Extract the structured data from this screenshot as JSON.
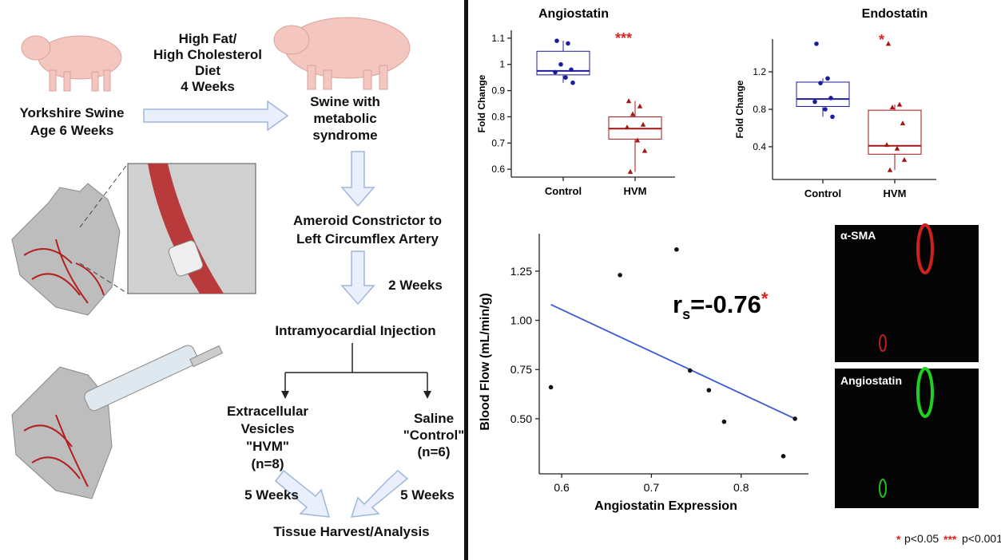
{
  "diagram": {
    "diet": [
      "High Fat/",
      "High Cholesterol",
      "Diet",
      "4 Weeks"
    ],
    "start": [
      "Yorkshire Swine",
      "Age 6 Weeks"
    ],
    "model": [
      "Swine with",
      "metabolic",
      "syndrome"
    ],
    "ameroid": [
      "Ameroid Constrictor to",
      "Left Circumflex Artery"
    ],
    "wait": "2 Weeks",
    "injection": "Intramyocardial Injection",
    "hvm": [
      "Extracellular",
      "Vesicles",
      "\"HVM\"",
      "(n=8)"
    ],
    "control": [
      "Saline",
      "\"Control\"",
      "(n=6)"
    ],
    "follow_left": "5 Weeks",
    "follow_right": "5 Weeks",
    "harvest": "Tissue Harvest/Analysis"
  },
  "chart_data": [
    {
      "type": "box",
      "title": "Angiostatin",
      "y_label": "Fold Change",
      "categories": [
        "Control",
        "HVM"
      ],
      "colors": [
        "#1c1c9c",
        "#a31515"
      ],
      "annotation": "***",
      "annotation_color": "#e02020",
      "ylim": [
        0.57,
        1.13
      ],
      "yticks": [
        0.6,
        0.7,
        0.8,
        0.9,
        1.0,
        1.1
      ],
      "boxes": [
        {
          "min": 0.93,
          "q1": 0.96,
          "median": 0.975,
          "q3": 1.05,
          "max": 1.09,
          "points": [
            1.09,
            1.08,
            1.0,
            0.98,
            0.97,
            0.95,
            0.93
          ]
        },
        {
          "min": 0.59,
          "q1": 0.715,
          "median": 0.755,
          "q3": 0.8,
          "max": 0.86,
          "points": [
            0.86,
            0.84,
            0.81,
            0.77,
            0.76,
            0.71,
            0.67,
            0.59
          ]
        }
      ]
    },
    {
      "type": "box",
      "title": "Endostatin",
      "y_label": "Fold Change",
      "categories": [
        "Control",
        "HVM"
      ],
      "colors": [
        "#1c1c9c",
        "#a31515"
      ],
      "annotation": "*",
      "annotation_color": "#e02020",
      "ylim": [
        0.05,
        1.55
      ],
      "yticks": [
        0.4,
        0.8,
        1.2
      ],
      "boxes": [
        {
          "min": 0.72,
          "q1": 0.83,
          "median": 0.91,
          "q3": 1.09,
          "max": 1.13,
          "points": [
            1.5,
            1.13,
            1.08,
            0.92,
            0.88,
            0.8,
            0.72
          ]
        },
        {
          "min": 0.15,
          "q1": 0.32,
          "median": 0.41,
          "q3": 0.79,
          "max": 0.85,
          "points": [
            1.5,
            0.85,
            0.82,
            0.65,
            0.42,
            0.38,
            0.26,
            0.15
          ]
        }
      ]
    },
    {
      "type": "scatter",
      "x_label": "Angiostatin Expression",
      "y_label": "Blood Flow (mL/min/g)",
      "x": [
        0.588,
        0.665,
        0.728,
        0.743,
        0.764,
        0.781,
        0.847,
        0.86
      ],
      "y": [
        0.66,
        1.23,
        1.36,
        0.745,
        0.645,
        0.485,
        0.31,
        0.5
      ],
      "color": "#111111",
      "fit_color": "#3a5bd9",
      "fit_x": [
        0.588,
        0.86
      ],
      "fit_y": [
        1.08,
        0.5
      ],
      "r_symbol": "r",
      "r_subscript": "s",
      "r_value": "=-0.76",
      "r_star": "*",
      "xlim": [
        0.575,
        0.875
      ],
      "xticks": [
        0.6,
        0.7,
        0.8
      ],
      "ylim": [
        0.22,
        1.44
      ],
      "yticks": [
        {
          "value": 0.5,
          "label": "0.50"
        },
        {
          "value": 0.75,
          "label": "0.75"
        },
        {
          "value": 1.0,
          "label": "1.00"
        },
        {
          "value": 1.25,
          "label": "1.25"
        }
      ]
    }
  ],
  "micrographs": [
    "α-SMA",
    "Angiostatin"
  ],
  "legend": {
    "star1": "*",
    "p1": "p<0.05",
    "star3": "***",
    "p3": "p<0.001"
  }
}
